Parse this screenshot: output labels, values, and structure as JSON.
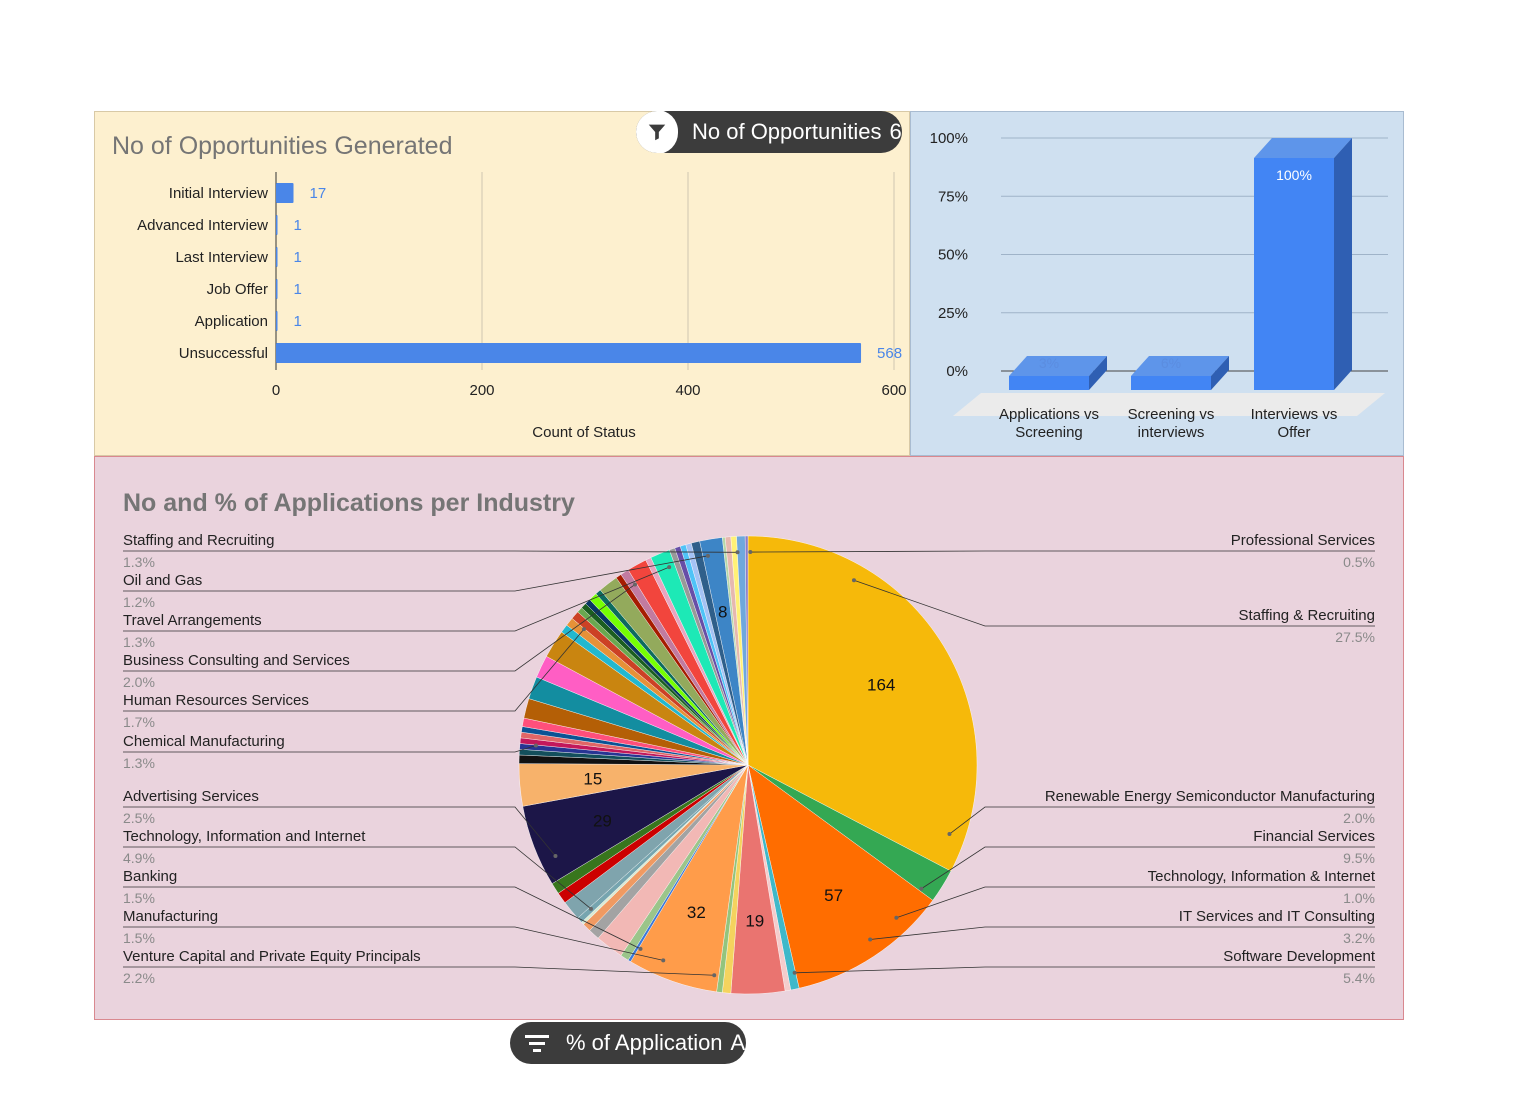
{
  "filters": {
    "opportunities_filter": {
      "label": "No of Opportunities",
      "value": "6 of 7",
      "icon": "funnel-icon"
    },
    "applications_filter": {
      "label": "% of Application",
      "value": "All",
      "icon": "filter-list-icon"
    }
  },
  "chart_data": [
    {
      "type": "bar",
      "orientation": "horizontal",
      "title": "No of Opportunities Generated",
      "categories": [
        "Initial Interview",
        "Advanced Interview",
        "Last Interview",
        "Job Offer",
        "Application",
        "Unsuccessful"
      ],
      "values": [
        17,
        1,
        1,
        1,
        1,
        568
      ],
      "data_labels": [
        "17",
        "1",
        "1",
        "1",
        "1",
        "568"
      ],
      "xlabel": "Count of Status",
      "ylabel": "",
      "xlim": [
        0,
        600
      ],
      "xticks": [
        "0",
        "200",
        "400",
        "600"
      ],
      "grid": true,
      "color": "#4a86e8"
    },
    {
      "type": "bar",
      "style": "3d-column",
      "title": "",
      "categories": [
        [
          "Applications vs",
          "Screening"
        ],
        [
          "Screening vs",
          "interviews"
        ],
        [
          "Interviews vs",
          "Offer"
        ]
      ],
      "values": [
        3,
        6,
        100
      ],
      "data_labels": [
        "3%",
        "6%",
        "100%"
      ],
      "ylim": [
        0,
        100
      ],
      "yticks": [
        "0%",
        "25%",
        "50%",
        "75%",
        "100%"
      ],
      "grid": true,
      "color": "#4a86e8"
    },
    {
      "type": "pie",
      "title": "No and % of Applications per Industry",
      "total": 596,
      "slices": [
        {
          "value": 164,
          "color": "#f6b90a",
          "label": "164"
        },
        {
          "value": 12,
          "color": "#34a853"
        },
        {
          "value": 57,
          "color": "#ff6d00",
          "label": "57"
        },
        {
          "value": 3,
          "color": "#3fb8c9"
        },
        {
          "value": 2,
          "color": "#f4cccc"
        },
        {
          "value": 19,
          "color": "#ea7470",
          "label": "19"
        },
        {
          "value": 3,
          "color": "#f4d35e"
        },
        {
          "value": 2,
          "color": "#93c47d"
        },
        {
          "value": 32,
          "color": "#ff9c4a",
          "label": "32"
        },
        {
          "value": 1,
          "color": "#3c78d8"
        },
        {
          "value": 3,
          "color": "#9bc58a"
        },
        {
          "value": 10,
          "color": "#f2b8b5"
        },
        {
          "value": 4,
          "color": "#a3a3a3"
        },
        {
          "value": 3,
          "color": "#f09a62"
        },
        {
          "value": 1,
          "color": "#d9ead3"
        },
        {
          "value": 2,
          "color": "#76a5af"
        },
        {
          "value": 7,
          "color": "#7fa4ad"
        },
        {
          "value": 4,
          "color": "#cc0000"
        },
        {
          "value": 4,
          "color": "#38761d"
        },
        {
          "value": 29,
          "color": "#1c1648",
          "label": "29"
        },
        {
          "value": 15,
          "color": "#f7b26b",
          "label": "15"
        },
        {
          "value": 3,
          "color": "#111111"
        },
        {
          "value": 2,
          "color": "#134f5c"
        },
        {
          "value": 2,
          "color": "#283593"
        },
        {
          "value": 2,
          "color": "#c2185b"
        },
        {
          "value": 2,
          "color": "#e06666"
        },
        {
          "value": 2,
          "color": "#0b5394"
        },
        {
          "value": 3,
          "color": "#ff4f7b"
        },
        {
          "value": 7,
          "color": "#b45f06"
        },
        {
          "value": 8,
          "color": "#138da0"
        },
        {
          "value": 8,
          "color": "#ff5ec4"
        },
        {
          "value": 10,
          "color": "#c98510"
        },
        {
          "value": 3,
          "color": "#22b8cf"
        },
        {
          "value": 3,
          "color": "#e69138"
        },
        {
          "value": 3,
          "color": "#cc4125"
        },
        {
          "value": 2,
          "color": "#6aa84f"
        },
        {
          "value": 2,
          "color": "#1b5e20"
        },
        {
          "value": 2,
          "color": "#073763"
        },
        {
          "value": 3,
          "color": "#76ff03"
        },
        {
          "value": 2,
          "color": "#0d6b5e"
        },
        {
          "value": 7,
          "color": "#93aa5c"
        },
        {
          "value": 2,
          "color": "#a61c00"
        },
        {
          "value": 3,
          "color": "#c27ba0"
        },
        {
          "value": 7,
          "color": "#f2453d"
        },
        {
          "value": 2,
          "color": "#e8a5c0"
        },
        {
          "value": 7,
          "color": "#1de9b6"
        },
        {
          "value": 2,
          "color": "#999999"
        },
        {
          "value": 2,
          "color": "#674ea7"
        },
        {
          "value": 2,
          "color": "#4fc3f7"
        },
        {
          "value": 2,
          "color": "#a4c2f4"
        },
        {
          "value": 3,
          "color": "#2f5f8a"
        },
        {
          "value": 8,
          "color": "#3d85c6",
          "label": "8"
        },
        {
          "value": 1,
          "color": "#b6d7a8"
        },
        {
          "value": 2,
          "color": "#e6b8af"
        },
        {
          "value": 2,
          "color": "#fff176"
        },
        {
          "value": 3,
          "color": "#6fa8dc"
        },
        {
          "value": 1,
          "color": "#8e7cc3"
        }
      ],
      "callouts_left": [
        {
          "name": "Staffing and Recruiting",
          "pct": "1.3%"
        },
        {
          "name": "Oil and Gas",
          "pct": "1.2%"
        },
        {
          "name": "Travel Arrangements",
          "pct": "1.3%"
        },
        {
          "name": "Business Consulting and Services",
          "pct": "2.0%"
        },
        {
          "name": "Human Resources Services",
          "pct": "1.7%"
        },
        {
          "name": "Chemical Manufacturing",
          "pct": "1.3%"
        },
        {
          "name": "Advertising Services",
          "pct": "2.5%"
        },
        {
          "name": "Technology, Information and Internet",
          "pct": "4.9%"
        },
        {
          "name": "Banking",
          "pct": "1.5%"
        },
        {
          "name": "Manufacturing",
          "pct": "1.5%"
        },
        {
          "name": "Venture Capital and Private Equity Principals",
          "pct": "2.2%"
        }
      ],
      "callouts_right": [
        {
          "name": "Professional Services",
          "pct": "0.5%"
        },
        {
          "name": "Staffing & Recruiting",
          "pct": "27.5%"
        },
        {
          "name": "Renewable Energy Semiconductor Manufacturing",
          "pct": "2.0%"
        },
        {
          "name": "Financial Services",
          "pct": "9.5%"
        },
        {
          "name": "Technology, Information & Internet",
          "pct": "1.0%"
        },
        {
          "name": "IT Services and IT Consulting",
          "pct": "3.2%"
        },
        {
          "name": "Software Development",
          "pct": "5.4%"
        }
      ]
    }
  ]
}
